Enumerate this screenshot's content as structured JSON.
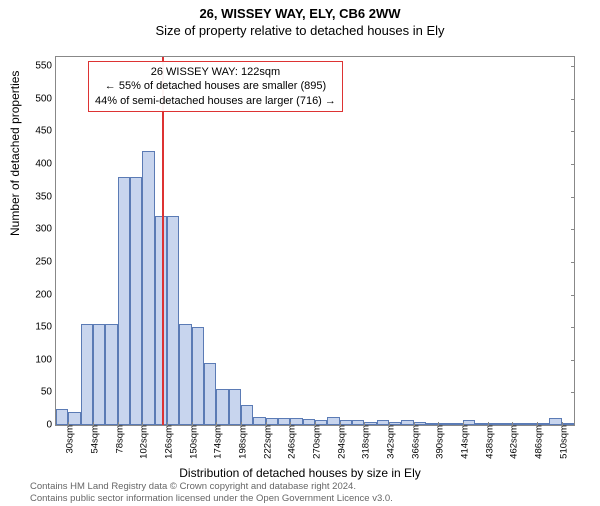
{
  "titles": {
    "main": "26, WISSEY WAY, ELY, CB6 2WW",
    "sub": "Size of property relative to detached houses in Ely"
  },
  "axes": {
    "ylabel": "Number of detached properties",
    "xlabel": "Distribution of detached houses by size in Ely"
  },
  "chart": {
    "type": "histogram",
    "ylim": [
      0,
      564
    ],
    "ytick_step": 50,
    "ytick_count": 12,
    "bin_start": 18,
    "bin_width": 12,
    "bin_count": 42,
    "values": [
      25,
      20,
      155,
      155,
      155,
      380,
      380,
      420,
      320,
      320,
      155,
      150,
      95,
      55,
      55,
      30,
      12,
      10,
      10,
      10,
      9,
      8,
      12,
      7,
      7,
      5,
      7,
      5,
      7,
      5,
      3,
      3,
      3,
      7,
      3,
      3,
      3,
      3,
      3,
      3,
      10,
      3
    ],
    "bar_fill": "#c8d5ee",
    "bar_stroke": "#5b7bb5",
    "background_color": "#ffffff",
    "xtick_start": 30,
    "xtick_step": 24,
    "xtick_count": 21,
    "xtick_unit": "sqm"
  },
  "marker": {
    "value_sqm": 122,
    "line_color": "#d33",
    "callout_lines": [
      "26 WISSEY WAY: 122sqm",
      "← 55% of detached houses are smaller (895)",
      "44% of semi-detached houses are larger (716) →"
    ]
  },
  "footer": {
    "line1": "Contains HM Land Registry data © Crown copyright and database right 2024.",
    "line2": "Contains public sector information licensed under the Open Government Licence v3.0."
  }
}
